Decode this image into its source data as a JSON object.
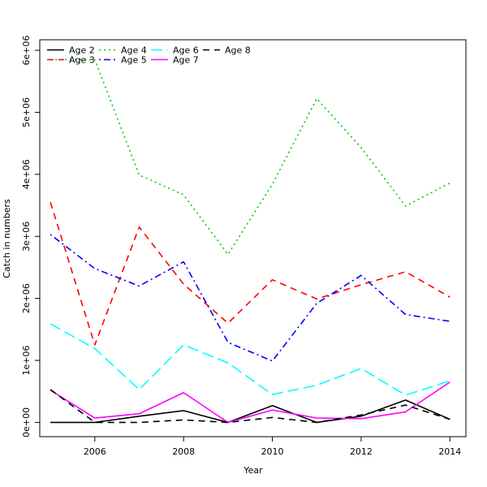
{
  "chart_data": {
    "type": "line",
    "xlabel": "Year",
    "ylabel": "Catch in numbers",
    "xlim": [
      2004.76,
      2014.36
    ],
    "ylim": [
      -230000,
      6170000
    ],
    "grid": false,
    "legend_position": "top-left",
    "x": [
      2005,
      2006,
      2007,
      2008,
      2009,
      2010,
      2011,
      2012,
      2013,
      2014
    ],
    "x_ticks": [
      2006,
      2008,
      2010,
      2012,
      2014
    ],
    "x_tick_labels": [
      "2006",
      "2008",
      "2010",
      "2012",
      "2014"
    ],
    "y_ticks": [
      0,
      1000000,
      2000000,
      3000000,
      4000000,
      5000000,
      6000000
    ],
    "y_tick_labels": [
      "0e+00",
      "1e+06",
      "2e+06",
      "3e+06",
      "4e+06",
      "5e+06",
      "6e+06"
    ],
    "series": [
      {
        "name": "Age 2",
        "color": "#000000",
        "dash": "solid",
        "values": [
          0,
          0,
          100000,
          190000,
          0,
          270000,
          0,
          100000,
          360000,
          50000
        ]
      },
      {
        "name": "Age 3",
        "color": "#ff0000",
        "dash": "dashed",
        "values": [
          3550000,
          1250000,
          3150000,
          2230000,
          1600000,
          2300000,
          1990000,
          2220000,
          2430000,
          2020000
        ]
      },
      {
        "name": "Age 4",
        "color": "#00cd00",
        "dash": "dotted",
        "values": [
          5850000,
          5850000,
          3990000,
          3670000,
          2710000,
          3840000,
          5220000,
          4430000,
          3490000,
          3860000
        ]
      },
      {
        "name": "Age 5",
        "color": "#0000ff",
        "dash": "dotdash",
        "values": [
          3030000,
          2480000,
          2200000,
          2590000,
          1290000,
          990000,
          1920000,
          2370000,
          1740000,
          1630000
        ]
      },
      {
        "name": "Age 6",
        "color": "#00ffff",
        "dash": "longdash",
        "values": [
          1590000,
          1190000,
          530000,
          1250000,
          960000,
          450000,
          600000,
          870000,
          440000,
          670000
        ]
      },
      {
        "name": "Age 7",
        "color": "#ff00ff",
        "dash": "solid",
        "values": [
          520000,
          70000,
          140000,
          480000,
          0,
          200000,
          70000,
          60000,
          170000,
          650000
        ]
      },
      {
        "name": "Age 8",
        "color": "#000000",
        "dash": "dashed",
        "values": [
          530000,
          0,
          0,
          40000,
          0,
          80000,
          0,
          120000,
          280000,
          50000
        ]
      }
    ]
  }
}
